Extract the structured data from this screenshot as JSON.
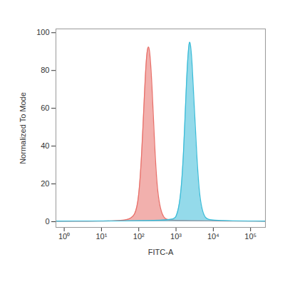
{
  "chart_data": {
    "type": "area",
    "x_label": "FITC-A",
    "y_label": "Normalized To Mode",
    "log": "x",
    "grid": false,
    "xlim": [
      0.6,
      250000
    ],
    "xticks": [
      {
        "value": 1,
        "label": "10⁰"
      },
      {
        "value": 10,
        "label": "10¹"
      },
      {
        "value": 100,
        "label": "10²"
      },
      {
        "value": 1000,
        "label": "10³"
      },
      {
        "value": 10000,
        "label": "10⁴"
      },
      {
        "value": 100000,
        "label": "10⁵"
      }
    ],
    "ylim": [
      -3,
      102
    ],
    "yticks": [
      0,
      20,
      40,
      60,
      80,
      100
    ],
    "series": [
      {
        "color": "#e8706a",
        "x": [
          0.6,
          10,
          50,
          80,
          100,
          120,
          140,
          160,
          180,
          200,
          230,
          260,
          300,
          350,
          420,
          500,
          700,
          250000
        ],
        "values": [
          0.3,
          0.3,
          0.5,
          3,
          12,
          35,
          65,
          88,
          94,
          90,
          70,
          45,
          22,
          10,
          4,
          1.5,
          0.5,
          0.3
        ]
      },
      {
        "color": "#3cbcd8",
        "x": [
          0.6,
          800,
          1000,
          1300,
          1600,
          1900,
          2200,
          2400,
          2700,
          3100,
          3600,
          4200,
          5000,
          6000,
          8000,
          250000
        ],
        "values": [
          0.3,
          0.5,
          2,
          10,
          35,
          75,
          95,
          96,
          85,
          60,
          35,
          15,
          6,
          2,
          0.5,
          0.3
        ]
      }
    ]
  }
}
